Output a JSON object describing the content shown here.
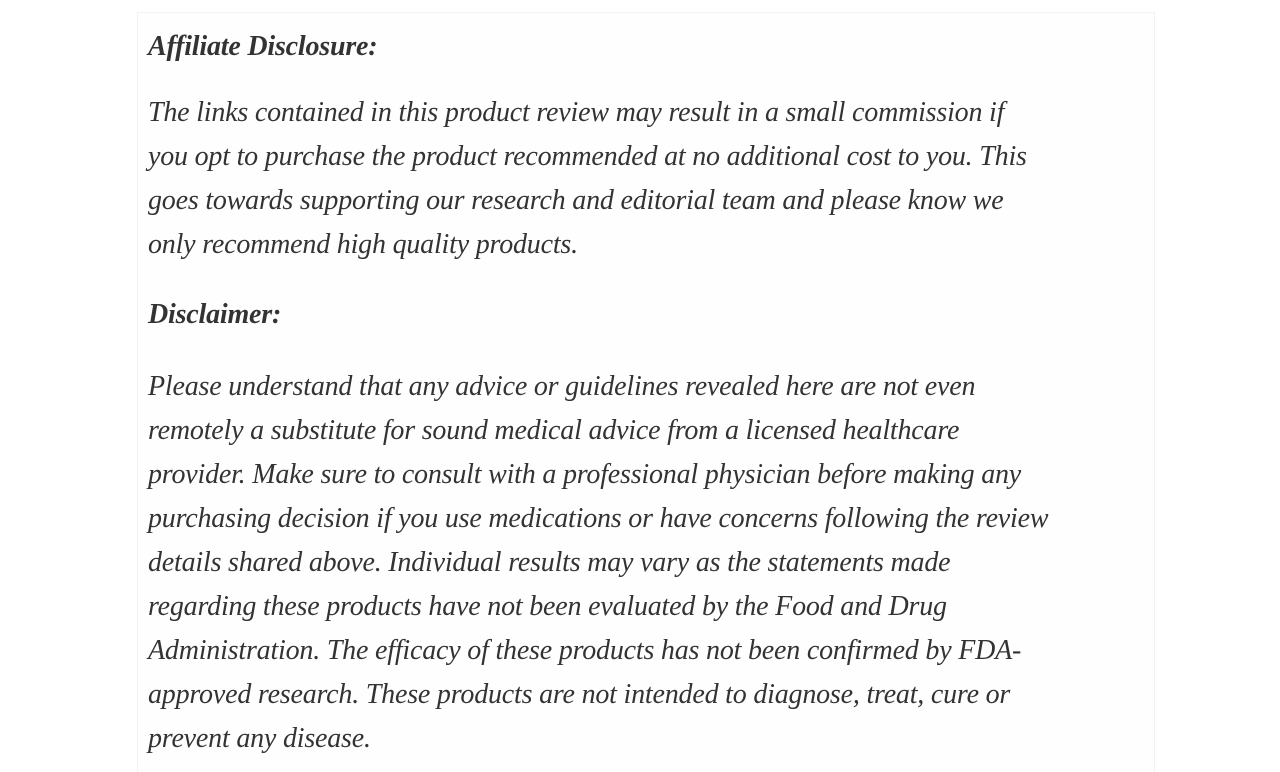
{
  "page": {
    "background_color": "#ffffff",
    "card_background_color": "#fefefe",
    "card_border_color": "#f2f2f2",
    "text_color": "#333333"
  },
  "content": {
    "blocks": [
      {
        "type": "heading",
        "text": "Affiliate Disclosure:"
      },
      {
        "type": "paragraph",
        "lines": [
          "The links contained in this product review may result in a small commission if",
          "you opt to purchase the product recommended at no additional cost to you. This",
          "goes towards supporting our research and editorial team and please know we",
          "only recommend high quality products."
        ]
      },
      {
        "type": "heading",
        "text": "Disclaimer:"
      },
      {
        "type": "paragraph",
        "lines": [
          "Please understand that any advice or guidelines revealed here are not even",
          "remotely a substitute for sound medical advice from a licensed healthcare",
          "provider. Make sure to consult with a professional physician before making any",
          "purchasing decision if you use medications or have concerns following the review",
          "details shared above. Individual results may vary as the statements made",
          "regarding these products have not been evaluated by the Food and Drug",
          "Administration. The efficacy of these products has not been confirmed by FDA-",
          "approved research. These products are not intended to diagnose, treat, cure or",
          "prevent any disease."
        ]
      }
    ]
  }
}
